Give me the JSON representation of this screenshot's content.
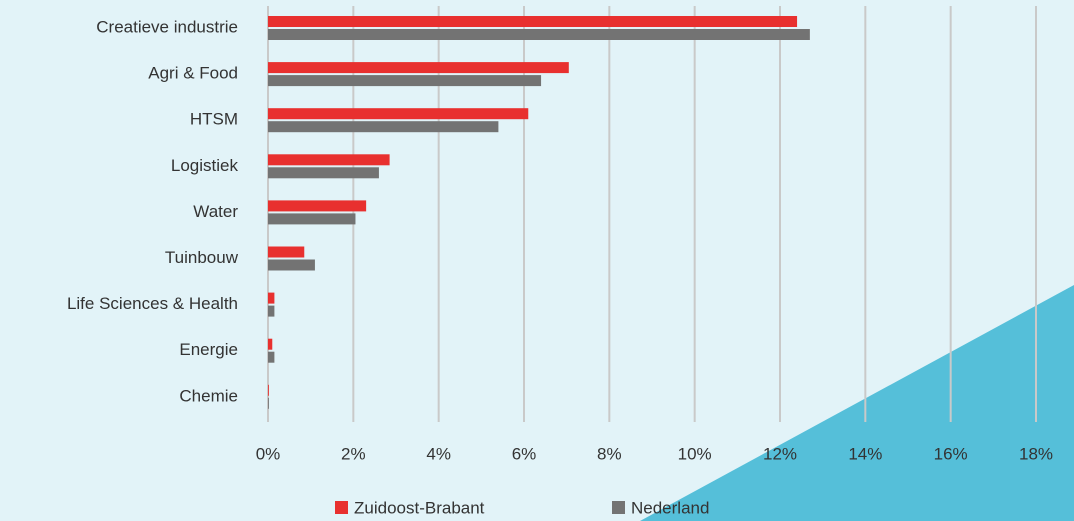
{
  "chart_data": {
    "type": "bar",
    "orientation": "horizontal",
    "categories": [
      "Creatieve industrie",
      "Agri & Food",
      "HTSM",
      "Logistiek",
      "Water",
      "Tuinbouw",
      "Life Sciences & Health",
      "Energie",
      "Chemie"
    ],
    "series": [
      {
        "name": "Zuidoost-Brabant",
        "color": "#e8302f",
        "values": [
          12.4,
          7.05,
          6.1,
          2.85,
          2.3,
          0.85,
          0.15,
          0.1,
          0.02
        ]
      },
      {
        "name": "Nederland",
        "color": "#737373",
        "values": [
          12.7,
          6.4,
          5.4,
          2.6,
          2.05,
          1.1,
          0.15,
          0.15,
          0.02
        ]
      }
    ],
    "xlim": [
      0,
      18
    ],
    "xticks": [
      {
        "value": 0,
        "label": "0%"
      },
      {
        "value": 2,
        "label": "2%"
      },
      {
        "value": 4,
        "label": "4%"
      },
      {
        "value": 6,
        "label": "6%"
      },
      {
        "value": 8,
        "label": "8%"
      },
      {
        "value": 10,
        "label": "10%"
      },
      {
        "value": 12,
        "label": "12%"
      },
      {
        "value": 14,
        "label": "14%"
      },
      {
        "value": 16,
        "label": "16%"
      },
      {
        "value": 18,
        "label": "18%"
      }
    ],
    "grid": true,
    "legend": "bottom"
  }
}
